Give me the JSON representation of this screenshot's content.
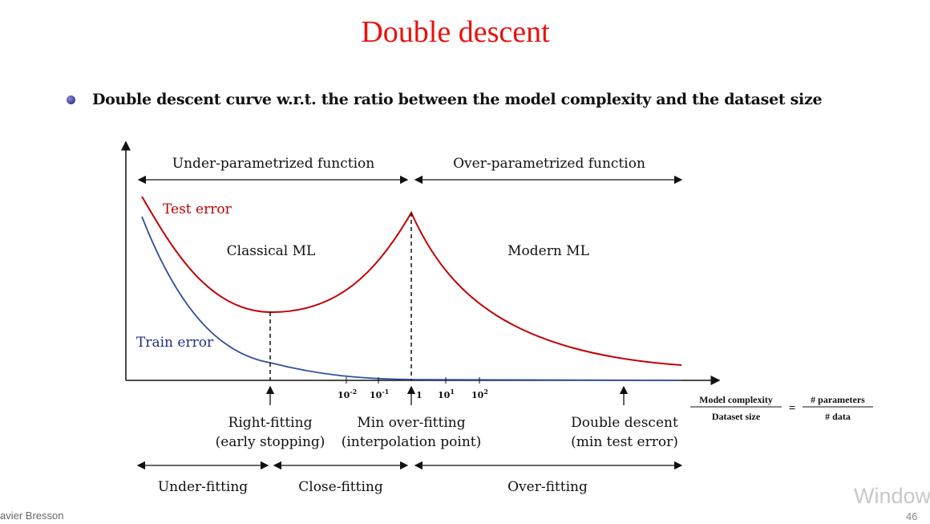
{
  "slide": {
    "title": "Double descent",
    "bullet": "Double descent curve w.r.t. the ratio between the model complexity and the dataset size",
    "author_footer": "avier Bresson",
    "page_number": "46",
    "watermark": "Windows"
  },
  "diagram": {
    "regions": {
      "under_param": "Under-parametrized function",
      "over_param": "Over-parametrized function"
    },
    "curves": {
      "test": "Test error",
      "train": "Train error"
    },
    "zones": {
      "classical": "Classical ML",
      "modern": "Modern ML"
    },
    "ticks": [
      "10-2",
      "10-1",
      "1",
      "101",
      "102"
    ],
    "tick_parts": [
      {
        "base": "10",
        "exp": "-2"
      },
      {
        "base": "10",
        "exp": "-1"
      },
      {
        "base": "1",
        "exp": ""
      },
      {
        "base": "10",
        "exp": "1"
      },
      {
        "base": "10",
        "exp": "2"
      }
    ],
    "axis_formula": {
      "num_left": "Model complexity",
      "den_left": "Dataset size",
      "equals": "=",
      "num_right": "# parameters",
      "den_right": "# data"
    },
    "points": [
      {
        "line1": "Right-fitting",
        "line2": "(early stopping)"
      },
      {
        "line1": "Min over-fitting",
        "line2": "(interpolation point)"
      },
      {
        "line1": "Double descent",
        "line2": "(min test error)"
      }
    ],
    "fitting": {
      "under": "Under-fitting",
      "close": "Close-fitting",
      "over": "Over-fitting"
    },
    "colors": {
      "test": "#c00000",
      "train": "#2f4f9f",
      "train_label": "#1f2f7f"
    }
  }
}
